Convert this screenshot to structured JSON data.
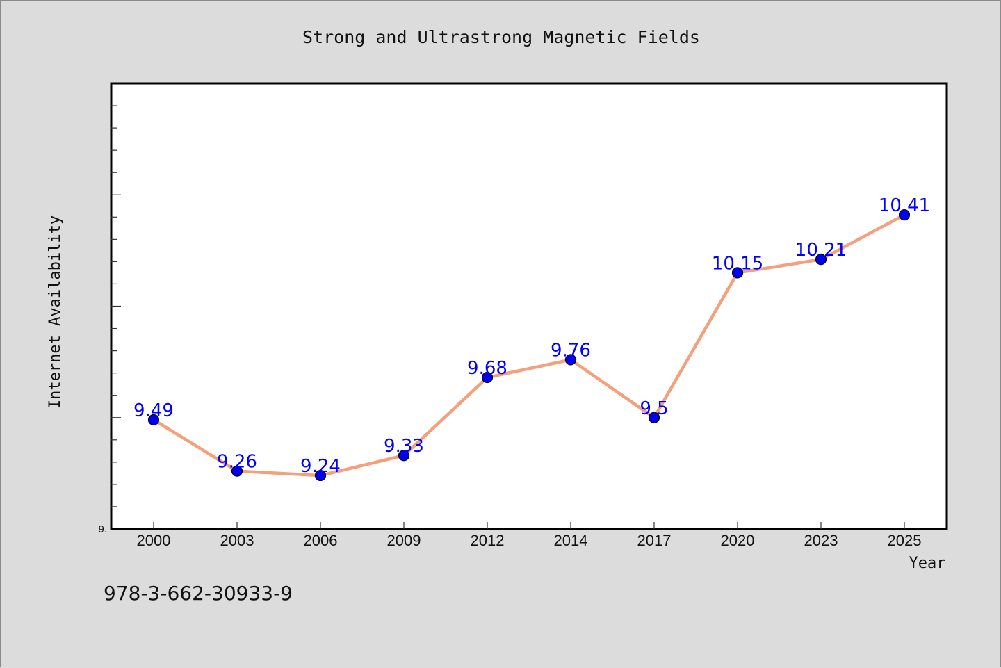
{
  "chart_data": {
    "type": "line",
    "title": "Strong and Ultrastrong Magnetic Fields",
    "xlabel": "Year",
    "ylabel": "Internet Availability",
    "categories": [
      "2000",
      "2003",
      "2006",
      "2009",
      "2012",
      "2014",
      "2017",
      "2020",
      "2023",
      "2025"
    ],
    "series": [
      {
        "values": [
          9.49,
          9.26,
          9.24,
          9.33,
          9.68,
          9.76,
          9.5,
          10.15,
          10.21,
          10.41
        ],
        "labels": [
          "9.49",
          "9.26",
          "9.24",
          "9.33",
          "9.68",
          "9.76",
          "9.5",
          "10.15",
          "10.21",
          "10.41"
        ],
        "line_color": "#f4a07c",
        "marker_color": "#0000ee"
      }
    ],
    "ylim": [
      9.0,
      11.0
    ],
    "yticks": [
      {
        "value": 9.0,
        "label": "9."
      }
    ],
    "grid": false,
    "legend": "none"
  },
  "footer": {
    "isbn": "978-3-662-30933-9"
  },
  "colors": {
    "background": "#dcdcdc",
    "plot_background": "#ffffff",
    "label_color": "#0000ff"
  }
}
